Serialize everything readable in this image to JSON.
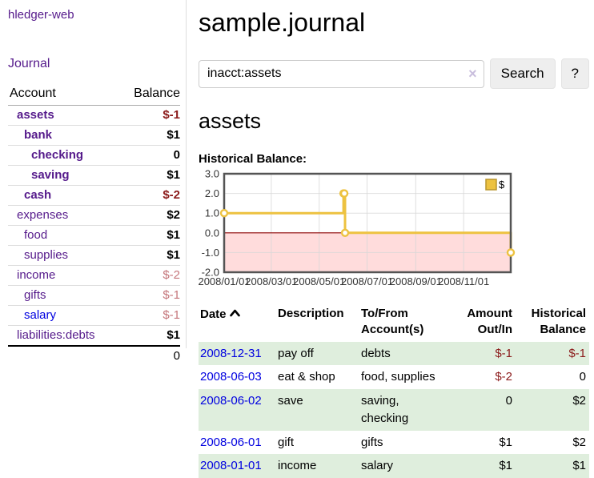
{
  "colors": {
    "purple_link": "#551a8b",
    "blue_link": "#0000e0",
    "negative_strong": "#8b1a1a",
    "negative_soft": "#c5767b",
    "row_stripe_green": "#dfeedd",
    "chart_line": "#edc240",
    "chart_negative_fill": "#ffdcdc",
    "chart_zero_line": "#8b0000",
    "chart_border": "#545454",
    "chart_grid": "#d8d8d8"
  },
  "sidebar": {
    "title": "hledger-web",
    "journal_label": "Journal",
    "headers": {
      "account": "Account",
      "balance": "Balance"
    },
    "accounts": [
      {
        "name": "assets",
        "balance": "$-1",
        "indent": 0,
        "bold": true,
        "neg": "strong",
        "link": "purple"
      },
      {
        "name": "bank",
        "balance": "$1",
        "indent": 1,
        "bold": true,
        "neg": "",
        "link": "purple"
      },
      {
        "name": "checking",
        "balance": "0",
        "indent": 2,
        "bold": true,
        "neg": "",
        "link": "purple"
      },
      {
        "name": "saving",
        "balance": "$1",
        "indent": 2,
        "bold": true,
        "neg": "",
        "link": "purple"
      },
      {
        "name": "cash",
        "balance": "$-2",
        "indent": 1,
        "bold": true,
        "neg": "strong",
        "link": "purple"
      },
      {
        "name": "expenses",
        "balance": "$2",
        "indent": 0,
        "bold": false,
        "neg": "",
        "link": "purple"
      },
      {
        "name": "food",
        "balance": "$1",
        "indent": 1,
        "bold": false,
        "neg": "",
        "link": "purple"
      },
      {
        "name": "supplies",
        "balance": "$1",
        "indent": 1,
        "bold": false,
        "neg": "",
        "link": "purple"
      },
      {
        "name": "income",
        "balance": "$-2",
        "indent": 0,
        "bold": false,
        "neg": "soft",
        "link": "purple"
      },
      {
        "name": "gifts",
        "balance": "$-1",
        "indent": 1,
        "bold": false,
        "neg": "soft",
        "link": "purple"
      },
      {
        "name": "salary",
        "balance": "$-1",
        "indent": 1,
        "bold": false,
        "neg": "soft",
        "link": "blue"
      },
      {
        "name": "liabilities:debts",
        "balance": "$1",
        "indent": 0,
        "bold": false,
        "neg": "",
        "link": "purple"
      }
    ],
    "total": "0"
  },
  "main": {
    "title": "sample.journal",
    "search": {
      "value": "inacct:assets",
      "clear_icon": "×",
      "button_label": "Search",
      "help_label": "?"
    },
    "account_heading": "assets",
    "chart_heading": "Historical Balance:"
  },
  "chart_data": {
    "type": "line",
    "step": "left",
    "title": "Historical Balance",
    "legend": {
      "label": "$",
      "position": "top-right"
    },
    "xlim": [
      "2008-01-01",
      "2008-12-31"
    ],
    "ylim": [
      -2.0,
      3.0
    ],
    "y_ticks": [
      3.0,
      2.0,
      1.0,
      0.0,
      -1.0,
      -2.0
    ],
    "x_ticks": [
      "2008/01/01",
      "2008/03/01",
      "2008/05/01",
      "2008/07/01",
      "2008/09/01",
      "2008/11/01"
    ],
    "series": [
      {
        "name": "$",
        "points": [
          [
            "2008-01-01",
            1.0
          ],
          [
            "2008-06-01",
            2.0
          ],
          [
            "2008-06-02",
            2.0
          ],
          [
            "2008-06-03",
            0.0
          ],
          [
            "2008-12-31",
            -1.0
          ]
        ]
      }
    ],
    "grid": true,
    "negative_region_shaded": true
  },
  "register": {
    "headers": {
      "date": "Date",
      "description": "Description",
      "accounts": [
        "To/From",
        "Account(s)"
      ],
      "amount": [
        "Amount",
        "Out/In"
      ],
      "balance": [
        "Historical",
        "Balance"
      ]
    },
    "sort": {
      "column": "date",
      "direction": "ascending"
    },
    "rows": [
      {
        "date": "2008-12-31",
        "description": "pay off",
        "accounts": [
          "debts"
        ],
        "amount": "$-1",
        "amount_neg": true,
        "balance": "$-1",
        "balance_neg": true,
        "stripe": true
      },
      {
        "date": "2008-06-03",
        "description": "eat & shop",
        "accounts": [
          "food, supplies"
        ],
        "amount": "$-2",
        "amount_neg": true,
        "balance": "0",
        "balance_neg": false,
        "stripe": false
      },
      {
        "date": "2008-06-02",
        "description": "save",
        "accounts": [
          "saving,",
          "checking"
        ],
        "amount": "0",
        "amount_neg": false,
        "balance": "$2",
        "balance_neg": false,
        "stripe": true
      },
      {
        "date": "2008-06-01",
        "description": "gift",
        "accounts": [
          "gifts"
        ],
        "amount": "$1",
        "amount_neg": false,
        "balance": "$2",
        "balance_neg": false,
        "stripe": false
      },
      {
        "date": "2008-01-01",
        "description": "income",
        "accounts": [
          "salary"
        ],
        "amount": "$1",
        "amount_neg": false,
        "balance": "$1",
        "balance_neg": false,
        "stripe": true
      }
    ]
  }
}
